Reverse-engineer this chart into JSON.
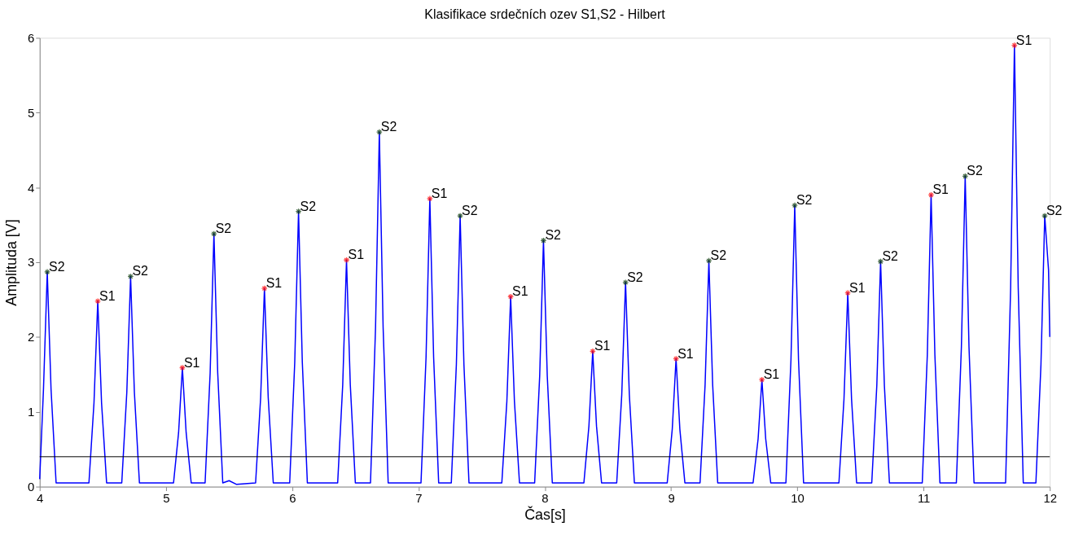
{
  "chart_data": {
    "type": "line",
    "title": "Klasifikace srdečních ozev S1,S2 - Hilbert",
    "xlabel": "Čas[s]",
    "ylabel": "Amplituda [V]",
    "xlim": [
      4,
      12
    ],
    "xticks": [
      4,
      5,
      6,
      7,
      8,
      9,
      10,
      11,
      12
    ],
    "ylim": [
      0,
      6
    ],
    "yticks": [
      0,
      1,
      2,
      3,
      4,
      5,
      6
    ],
    "grid": false,
    "ref_lines": [
      {
        "axis": "y",
        "value": 0.4,
        "color": "#000000"
      }
    ],
    "series": [
      {
        "color": "#0000ff",
        "marker": "none",
        "line_style": "solid",
        "x": [
          4.0,
          4.03,
          4.06,
          4.09,
          4.13,
          4.39,
          4.43,
          4.46,
          4.49,
          4.53,
          4.65,
          4.69,
          4.72,
          4.75,
          4.79,
          5.06,
          5.1,
          5.13,
          5.16,
          5.2,
          5.31,
          5.35,
          5.38,
          5.41,
          5.45,
          5.5,
          5.56,
          5.71,
          5.75,
          5.78,
          5.81,
          5.85,
          5.98,
          6.02,
          6.05,
          6.08,
          6.12,
          6.36,
          6.4,
          6.43,
          6.46,
          6.5,
          6.62,
          6.66,
          6.69,
          6.72,
          6.76,
          7.02,
          7.06,
          7.09,
          7.12,
          7.16,
          7.26,
          7.3,
          7.33,
          7.36,
          7.4,
          7.66,
          7.7,
          7.73,
          7.76,
          7.8,
          7.92,
          7.96,
          7.99,
          8.02,
          8.06,
          8.31,
          8.35,
          8.38,
          8.41,
          8.45,
          8.57,
          8.61,
          8.64,
          8.67,
          8.71,
          8.97,
          9.01,
          9.04,
          9.07,
          9.11,
          9.23,
          9.27,
          9.3,
          9.33,
          9.37,
          9.65,
          9.69,
          9.72,
          9.75,
          9.79,
          9.91,
          9.95,
          9.98,
          10.01,
          10.05,
          10.33,
          10.37,
          10.4,
          10.43,
          10.47,
          10.59,
          10.63,
          10.66,
          10.69,
          10.73,
          10.99,
          11.03,
          11.06,
          11.09,
          11.13,
          11.26,
          11.3,
          11.33,
          11.36,
          11.4,
          11.65,
          11.69,
          11.72,
          11.75,
          11.79,
          11.89,
          11.93,
          11.96,
          11.99,
          12.0
        ],
        "values": [
          0.1,
          1.3,
          2.87,
          1.3,
          0.05,
          0.05,
          1.12,
          2.48,
          1.12,
          0.05,
          0.05,
          1.26,
          2.81,
          1.26,
          0.05,
          0.05,
          0.72,
          1.59,
          0.72,
          0.05,
          0.05,
          1.52,
          3.38,
          1.52,
          0.05,
          0.08,
          0.03,
          0.05,
          1.19,
          2.65,
          1.19,
          0.05,
          0.05,
          1.66,
          3.68,
          1.66,
          0.05,
          0.05,
          1.36,
          3.03,
          1.36,
          0.05,
          0.05,
          2.13,
          4.74,
          2.13,
          0.05,
          0.05,
          1.73,
          3.85,
          1.73,
          0.05,
          0.05,
          1.63,
          3.62,
          1.63,
          0.05,
          0.05,
          1.14,
          2.54,
          1.14,
          0.05,
          0.05,
          1.48,
          3.29,
          1.48,
          0.05,
          0.05,
          0.81,
          1.81,
          0.81,
          0.05,
          0.05,
          1.23,
          2.73,
          1.23,
          0.05,
          0.05,
          0.77,
          1.71,
          0.77,
          0.05,
          0.05,
          1.36,
          3.02,
          1.36,
          0.05,
          0.05,
          0.64,
          1.43,
          0.64,
          0.05,
          0.05,
          1.69,
          3.76,
          1.69,
          0.05,
          0.05,
          1.17,
          2.59,
          1.17,
          0.05,
          0.05,
          1.35,
          3.01,
          1.35,
          0.05,
          0.05,
          1.76,
          3.9,
          1.76,
          0.05,
          0.05,
          1.87,
          4.15,
          1.87,
          0.05,
          0.05,
          2.66,
          5.9,
          2.66,
          0.05,
          0.05,
          1.63,
          3.62,
          2.9,
          2.0
        ]
      },
      {
        "type": "scatter",
        "name": "S1",
        "color": "#ff0000",
        "marker": "cross",
        "x": [
          4.46,
          5.13,
          5.78,
          6.43,
          7.09,
          7.73,
          8.38,
          9.04,
          9.72,
          10.4,
          11.06,
          11.72
        ],
        "values": [
          2.48,
          1.59,
          2.65,
          3.03,
          3.85,
          2.54,
          1.81,
          1.71,
          1.43,
          2.59,
          3.9,
          5.9
        ]
      },
      {
        "type": "scatter",
        "name": "S2",
        "color": "#003300",
        "marker": "cross",
        "x": [
          4.06,
          4.72,
          5.38,
          6.05,
          6.69,
          7.33,
          7.99,
          8.64,
          9.3,
          9.98,
          10.66,
          11.33,
          11.96
        ],
        "values": [
          2.87,
          2.81,
          3.38,
          3.68,
          4.74,
          3.62,
          3.29,
          2.73,
          3.02,
          3.76,
          3.01,
          4.15,
          3.62
        ]
      }
    ]
  }
}
